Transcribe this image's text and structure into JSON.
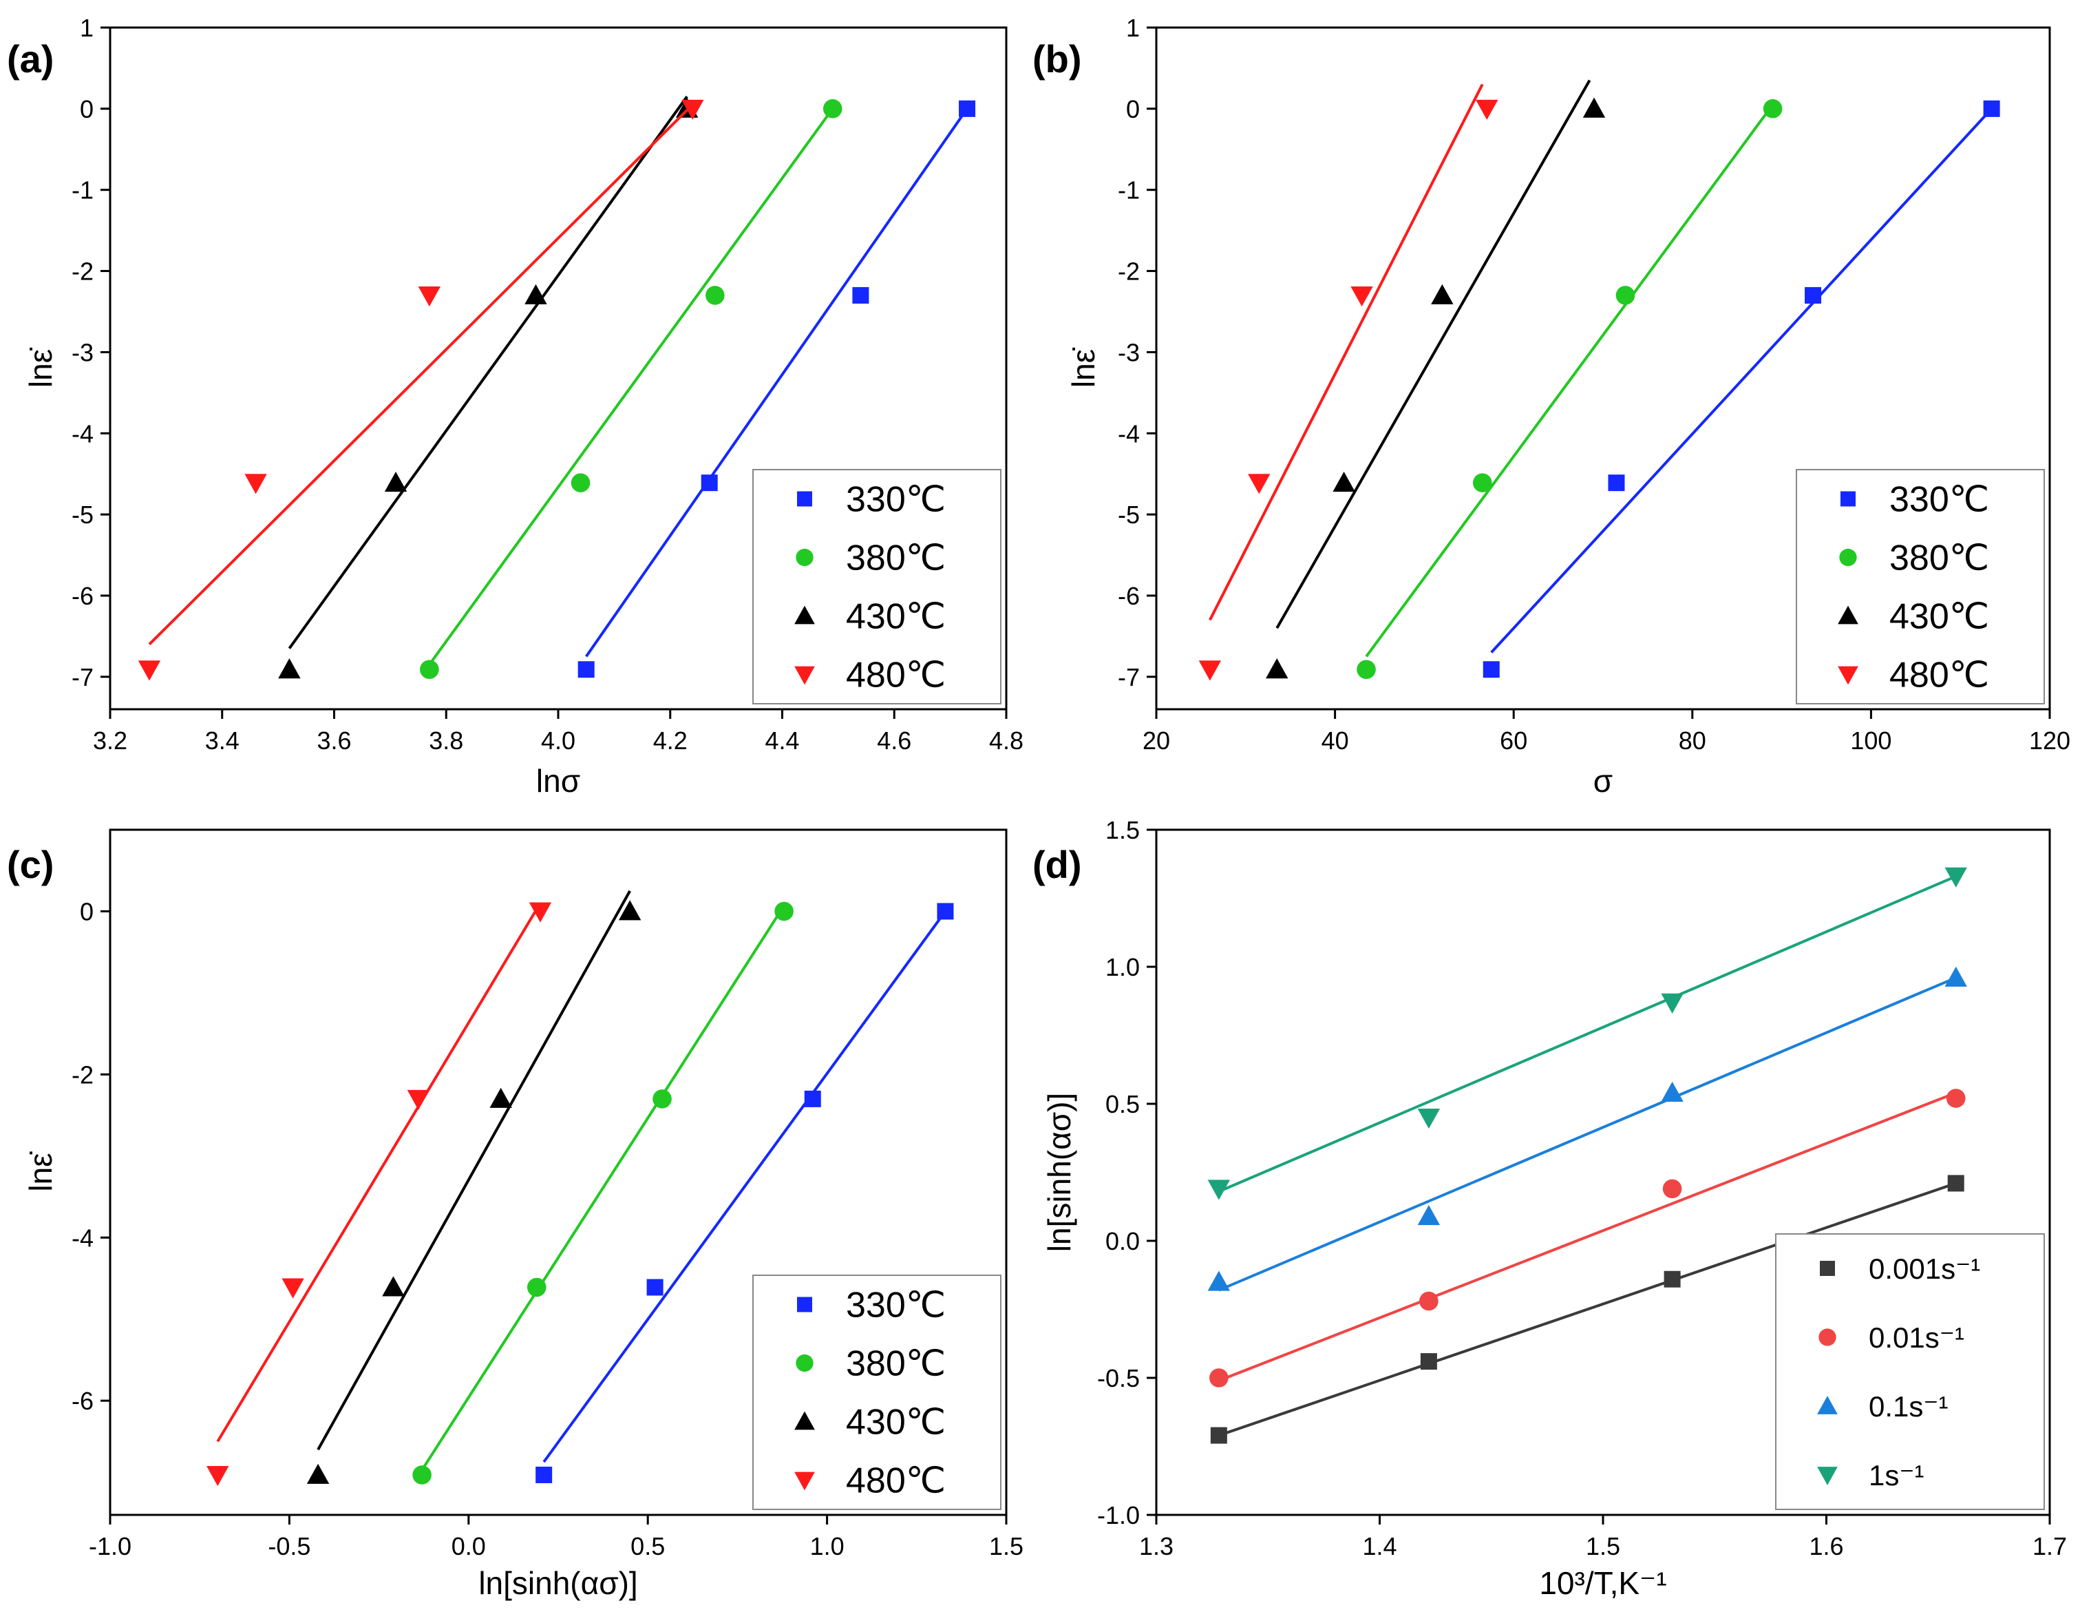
{
  "figure": {
    "panels": [
      "(a)",
      "(b)",
      "(c)",
      "(d)"
    ]
  },
  "colors": {
    "330": "#1428ff",
    "380": "#22c922",
    "430": "#000000",
    "480": "#ff1a1a",
    "rate_0001": "#3a3a3a",
    "rate_001": "#f04545",
    "rate_01": "#1a7fdb",
    "rate_1": "#1aa37a"
  },
  "chart_data": [
    {
      "panel": "(a)",
      "type": "scatter",
      "xlabel": "lnσ",
      "ylabel": "lnε̇",
      "xlim": [
        3.2,
        4.8
      ],
      "ylim": [
        -7.4,
        1.0
      ],
      "xticks": [
        "3.2",
        "3.4",
        "3.6",
        "3.8",
        "4.0",
        "4.2",
        "4.4",
        "4.6",
        "4.8"
      ],
      "yticks": [
        "1",
        "0",
        "-1",
        "-2",
        "-3",
        "-4",
        "-5",
        "-6",
        "-7"
      ],
      "legend": [
        "330℃",
        "380℃",
        "430℃",
        "480℃"
      ],
      "legend_position": "bottom-right",
      "series": [
        {
          "name": "330℃",
          "marker": "square",
          "color_key": "330",
          "x": [
            4.05,
            4.27,
            4.54,
            4.73
          ],
          "y": [
            -6.91,
            -4.61,
            -2.3,
            0.0
          ],
          "fit": [
            [
              4.05,
              -6.75
            ],
            [
              4.73,
              0.0
            ]
          ]
        },
        {
          "name": "380℃",
          "marker": "circle",
          "color_key": "380",
          "x": [
            3.77,
            4.04,
            4.28,
            4.49
          ],
          "y": [
            -6.91,
            -4.61,
            -2.3,
            0.0
          ],
          "fit": [
            [
              3.77,
              -6.85
            ],
            [
              4.49,
              0.0
            ]
          ]
        },
        {
          "name": "430℃",
          "marker": "triangle-up",
          "color_key": "430",
          "x": [
            3.52,
            3.71,
            3.96,
            4.23
          ],
          "y": [
            -6.91,
            -4.61,
            -2.3,
            0.0
          ],
          "fit": [
            [
              3.52,
              -6.65
            ],
            [
              4.23,
              0.15
            ]
          ]
        },
        {
          "name": "480℃",
          "marker": "triangle-down",
          "color_key": "480",
          "x": [
            3.27,
            3.46,
            3.77,
            4.24
          ],
          "y": [
            -6.91,
            -4.61,
            -2.3,
            0.0
          ],
          "fit": [
            [
              3.27,
              -6.6
            ],
            [
              4.24,
              0.05
            ]
          ]
        }
      ]
    },
    {
      "panel": "(b)",
      "type": "scatter",
      "xlabel": "σ",
      "ylabel": "lnε̇",
      "xlim": [
        20,
        120
      ],
      "ylim": [
        -7.4,
        1.0
      ],
      "xticks": [
        "20",
        "40",
        "60",
        "80",
        "100",
        "120"
      ],
      "yticks": [
        "1",
        "0",
        "-1",
        "-2",
        "-3",
        "-4",
        "-5",
        "-6",
        "-7"
      ],
      "legend": [
        "330℃",
        "380℃",
        "430℃",
        "480℃"
      ],
      "legend_position": "bottom-right",
      "series": [
        {
          "name": "330℃",
          "marker": "square",
          "color_key": "330",
          "x": [
            57.5,
            71.5,
            93.5,
            113.5
          ],
          "y": [
            -6.91,
            -4.61,
            -2.3,
            0.0
          ],
          "fit": [
            [
              57.5,
              -6.7
            ],
            [
              113.5,
              0.0
            ]
          ]
        },
        {
          "name": "380℃",
          "marker": "circle",
          "color_key": "380",
          "x": [
            43.5,
            56.5,
            72.5,
            89.0
          ],
          "y": [
            -6.91,
            -4.61,
            -2.3,
            0.0
          ],
          "fit": [
            [
              43.5,
              -6.75
            ],
            [
              89.0,
              0.05
            ]
          ]
        },
        {
          "name": "430℃",
          "marker": "triangle-up",
          "color_key": "430",
          "x": [
            33.5,
            41.0,
            52.0,
            69.0
          ],
          "y": [
            -6.91,
            -4.61,
            -2.3,
            0.0
          ],
          "fit": [
            [
              33.5,
              -6.4
            ],
            [
              68.5,
              0.35
            ]
          ]
        },
        {
          "name": "480℃",
          "marker": "triangle-down",
          "color_key": "480",
          "x": [
            26.0,
            31.5,
            43.0,
            57.0
          ],
          "y": [
            -6.91,
            -4.61,
            -2.3,
            0.0
          ],
          "fit": [
            [
              26.0,
              -6.3
            ],
            [
              56.5,
              0.3
            ]
          ]
        }
      ]
    },
    {
      "panel": "(c)",
      "type": "scatter",
      "xlabel": "ln[sinh(ασ)]",
      "ylabel": "lnε̇",
      "xlim": [
        -1.0,
        1.5
      ],
      "ylim": [
        -7.4,
        1.0
      ],
      "xticks": [
        "-1.0",
        "-0.5",
        "0.0",
        "0.5",
        "1.0",
        "1.5"
      ],
      "yticks": [
        "0",
        "-2",
        "-4",
        "-6"
      ],
      "legend": [
        "330℃",
        "380℃",
        "430℃",
        "480℃"
      ],
      "legend_position": "bottom-right",
      "series": [
        {
          "name": "330℃",
          "marker": "square",
          "color_key": "330",
          "x": [
            0.21,
            0.52,
            0.96,
            1.33
          ],
          "y": [
            -6.91,
            -4.61,
            -2.3,
            0.0
          ],
          "fit": [
            [
              0.21,
              -6.75
            ],
            [
              1.33,
              0.0
            ]
          ]
        },
        {
          "name": "380℃",
          "marker": "circle",
          "color_key": "380",
          "x": [
            -0.13,
            0.19,
            0.54,
            0.88
          ],
          "y": [
            -6.91,
            -4.61,
            -2.3,
            0.0
          ],
          "fit": [
            [
              -0.13,
              -6.85
            ],
            [
              0.87,
              0.0
            ]
          ]
        },
        {
          "name": "430℃",
          "marker": "triangle-up",
          "color_key": "430",
          "x": [
            -0.42,
            -0.21,
            0.09,
            0.45
          ],
          "y": [
            -6.91,
            -4.61,
            -2.3,
            0.0
          ],
          "fit": [
            [
              -0.42,
              -6.6
            ],
            [
              0.45,
              0.25
            ]
          ]
        },
        {
          "name": "480℃",
          "marker": "triangle-down",
          "color_key": "480",
          "x": [
            -0.7,
            -0.49,
            -0.14,
            0.2
          ],
          "y": [
            -6.91,
            -4.61,
            -2.3,
            0.0
          ],
          "fit": [
            [
              -0.7,
              -6.5
            ],
            [
              0.2,
              0.1
            ]
          ]
        }
      ]
    },
    {
      "panel": "(d)",
      "type": "scatter",
      "xlabel": "10³/T,K⁻¹",
      "ylabel": "ln[sinh(ασ)]",
      "xlim": [
        1.3,
        1.7
      ],
      "ylim": [
        -1.0,
        1.5
      ],
      "xticks": [
        "1.3",
        "1.4",
        "1.5",
        "1.6",
        "1.7"
      ],
      "yticks": [
        "1.5",
        "1.0",
        "0.5",
        "0.0",
        "-0.5",
        "-1.0"
      ],
      "legend": [
        "0.001s⁻¹",
        "0.01s⁻¹",
        "0.1s⁻¹",
        "1s⁻¹"
      ],
      "legend_position": "bottom-right",
      "series": [
        {
          "name": "0.001s⁻¹",
          "marker": "square",
          "color_key": "rate_0001",
          "x": [
            1.328,
            1.422,
            1.531,
            1.658
          ],
          "y": [
            -0.71,
            -0.44,
            -0.14,
            0.21
          ],
          "fit": [
            [
              1.328,
              -0.71
            ],
            [
              1.658,
              0.21
            ]
          ]
        },
        {
          "name": "0.01s⁻¹",
          "marker": "circle",
          "color_key": "rate_001",
          "x": [
            1.328,
            1.422,
            1.531,
            1.658
          ],
          "y": [
            -0.5,
            -0.22,
            0.19,
            0.52
          ],
          "fit": [
            [
              1.328,
              -0.51
            ],
            [
              1.658,
              0.54
            ]
          ]
        },
        {
          "name": "0.1s⁻¹",
          "marker": "triangle-up",
          "color_key": "rate_01",
          "x": [
            1.328,
            1.422,
            1.531,
            1.658
          ],
          "y": [
            -0.15,
            0.09,
            0.54,
            0.96
          ],
          "fit": [
            [
              1.328,
              -0.18
            ],
            [
              1.658,
              0.96
            ]
          ]
        },
        {
          "name": "1s⁻¹",
          "marker": "triangle-down",
          "color_key": "rate_1",
          "x": [
            1.328,
            1.422,
            1.531,
            1.658
          ],
          "y": [
            0.19,
            0.45,
            0.87,
            1.33
          ],
          "fit": [
            [
              1.328,
              0.18
            ],
            [
              1.658,
              1.33
            ]
          ]
        }
      ]
    }
  ]
}
